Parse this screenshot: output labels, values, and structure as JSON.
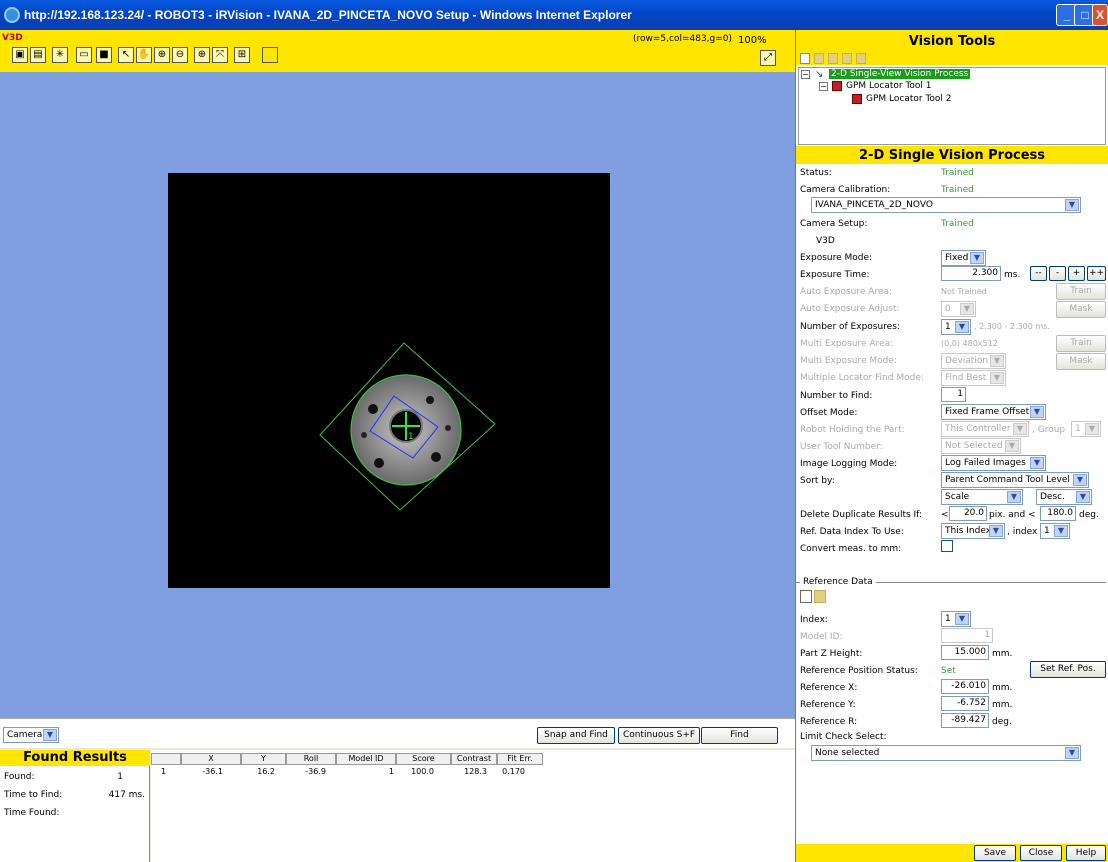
{
  "window": {
    "title": "http://192.168.123.24/ - ROBOT3 - iRVision - IVANA_2D_PINCETA_NOVO Setup - Windows Internet Explorer",
    "min": "_",
    "max": "□",
    "close": "X"
  },
  "image_view": {
    "label": "V3D",
    "coord_readout": "(row=5,col=483,g=0)",
    "zoom": "100%"
  },
  "camera_bar": {
    "camera_select": "Camera",
    "snap_find": "Snap and Find",
    "continuous": "Continuous S+F",
    "find": "Find"
  },
  "found_results": {
    "title": "Found Results",
    "found_label": "Found:",
    "found_value": "1",
    "time_label": "Time to Find:",
    "time_value": "417 ms.",
    "time_found_label": "Time Found:",
    "columns": [
      "X",
      "Y",
      "Roll",
      "Model ID",
      "Score",
      "Contrast",
      "Fit Err."
    ],
    "row": {
      "index": "1",
      "x": "-36.1",
      "y": "16.2",
      "roll": "-36.9",
      "model_id": "1",
      "score": "100.0",
      "contrast": "128.3",
      "fit_err": "0.170"
    }
  },
  "vision_tools": {
    "title": "Vision Tools",
    "tree": [
      "2-D Single-View Vision Process",
      "GPM Locator Tool 1",
      "GPM Locator Tool 2"
    ]
  },
  "process": {
    "title": "2-D Single Vision Process",
    "status_label": "Status:",
    "status_value": "Trained",
    "cam_cal_label": "Camera Calibration:",
    "cam_cal_value": "Trained",
    "cam_cal_select": "IVANA_PINCETA_2D_NOVO",
    "cam_setup_label": "Camera Setup:",
    "cam_setup_value": "Trained",
    "cam_setup_name": "V3D",
    "exp_mode_label": "Exposure Mode:",
    "exp_mode_value": "Fixed",
    "exp_time_label": "Exposure Time:",
    "exp_time_value": "2.300",
    "exp_time_unit": "ms.",
    "exp_btns": [
      "--",
      "-",
      "+",
      "++"
    ],
    "auto_area_label": "Auto Exposure Area:",
    "auto_area_value": "Not Trained",
    "train1": "Train",
    "auto_adjust_label": "Auto Exposure Adjust:",
    "auto_adjust_value": "0",
    "mask1": "Mask",
    "num_exp_label": "Number of Exposures:",
    "num_exp_value": "1",
    "num_exp_range": ", 2.300 - 2.300 ms.",
    "multi_area_label": "Multi Exposure Area:",
    "multi_area_value": "(0,0) 480x512",
    "train2": "Train",
    "multi_mode_label": "Multi Exposure Mode:",
    "multi_mode_value": "Deviation",
    "mask2": "Mask",
    "multi_loc_label": "Multiple Locator Find Mode:",
    "multi_loc_value": "Find Best",
    "num_find_label": "Number to Find:",
    "num_find_value": "1",
    "offset_label": "Offset Mode:",
    "offset_value": "Fixed Frame Offset",
    "robot_label": "Robot Holding the Part:",
    "robot_value": "This Controller",
    "group_label": ", Group",
    "group_value": "1",
    "user_tool_label": "User Tool Number:",
    "user_tool_value": "Not Selected",
    "log_label": "Image Logging Mode:",
    "log_value": "Log Failed Images",
    "sort_label": "Sort by:",
    "sort_value": "Parent Command Tool Level",
    "sort_key": "Scale",
    "sort_order": "Desc.",
    "dup_label": "Delete Duplicate Results If:",
    "dup_lt": "<",
    "dup_pix": "20.0",
    "dup_mid": "pix. and <",
    "dup_deg": "180.0",
    "dup_deg_unit": "deg.",
    "ref_idx_label": "Ref. Data Index To Use:",
    "ref_idx_value": "This Index",
    "ref_idx_sep": ", index",
    "ref_idx_num": "1",
    "convert_label": "Convert meas. to mm:"
  },
  "reference": {
    "title": "Reference Data",
    "index_label": "Index:",
    "index_value": "1",
    "model_label": "Model ID:",
    "model_value": "1",
    "z_label": "Part Z Height:",
    "z_value": "15.000",
    "z_unit": "mm.",
    "status_label": "Reference Position Status:",
    "status_value": "Set",
    "set_btn": "Set Ref. Pos.",
    "x_label": "Reference X:",
    "x_value": "-26.010",
    "x_unit": "mm.",
    "y_label": "Reference Y:",
    "y_value": "-6.752",
    "y_unit": "mm.",
    "r_label": "Reference R:",
    "r_value": "-89.427",
    "r_unit": "deg.",
    "limit_label": "Limit Check Select:",
    "limit_value": "None selected"
  },
  "footer": {
    "save": "Save",
    "close": "Close",
    "help": "Help"
  },
  "colors": {
    "accent_yellow": "#ffe600",
    "image_bg": "#7f9fe0",
    "trained_green": "#3a9a3a",
    "tree_selected": "#1c9a1c"
  }
}
